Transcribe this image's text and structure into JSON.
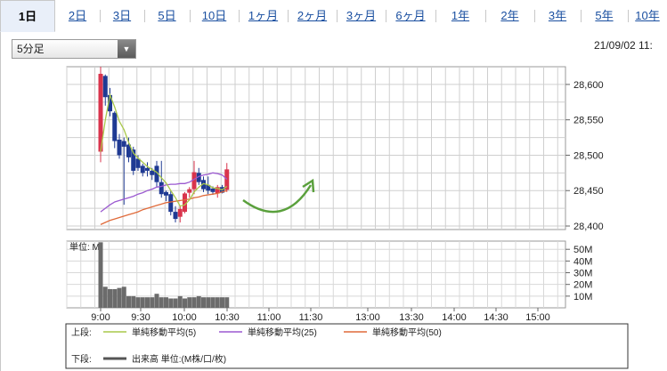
{
  "tabs": [
    {
      "label": "1日",
      "active": true
    },
    {
      "label": "2日",
      "active": false
    },
    {
      "label": "3日",
      "active": false
    },
    {
      "label": "5日",
      "active": false
    },
    {
      "label": "10日",
      "active": false
    },
    {
      "label": "1ヶ月",
      "active": false
    },
    {
      "label": "2ヶ月",
      "active": false
    },
    {
      "label": "3ヶ月",
      "active": false
    },
    {
      "label": "6ヶ月",
      "active": false
    },
    {
      "label": "1年",
      "active": false
    },
    {
      "label": "2年",
      "active": false
    },
    {
      "label": "3年",
      "active": false
    },
    {
      "label": "5年",
      "active": false
    },
    {
      "label": "10年",
      "active": false
    }
  ],
  "interval_select": {
    "value": "5分足"
  },
  "timestamp": "21/09/02 11:",
  "colors": {
    "up": "#d9344c",
    "down": "#1f3a93",
    "ma5": "#a9c84a",
    "ma25": "#9b59d0",
    "ma50": "#e06a3a",
    "volume": "#6b6b6b",
    "arrow": "#5aa03c",
    "grid": "#b0b0b0"
  },
  "chart_data": [
    {
      "type": "candlestick",
      "x_tick_labels": [
        "9:00",
        "9:30",
        "10:00",
        "10:30",
        "11:00",
        "11:30",
        "13:00",
        "13:30",
        "14:00",
        "14:30",
        "15:00"
      ],
      "y_ticks": [
        28400,
        28450,
        28500,
        28550,
        28600
      ],
      "y_tick_labels": [
        "28,400",
        "28,450",
        "28,500",
        "28,550",
        "28,600"
      ],
      "ylim": [
        28395,
        28625
      ],
      "grid": true,
      "candles": [
        {
          "t": "9:00",
          "o": 28505,
          "h": 28625,
          "l": 28490,
          "c": 28615
        },
        {
          "t": "9:05",
          "o": 28612,
          "h": 28614,
          "l": 28570,
          "c": 28582
        },
        {
          "t": "9:10",
          "o": 28585,
          "h": 28595,
          "l": 28555,
          "c": 28562
        },
        {
          "t": "9:15",
          "o": 28560,
          "h": 28562,
          "l": 28510,
          "c": 28520
        },
        {
          "t": "9:20",
          "o": 28522,
          "h": 28530,
          "l": 28495,
          "c": 28500
        },
        {
          "t": "9:25",
          "o": 28520,
          "h": 28525,
          "l": 28430,
          "c": 28512
        },
        {
          "t": "9:30",
          "o": 28515,
          "h": 28525,
          "l": 28490,
          "c": 28497
        },
        {
          "t": "9:35",
          "o": 28508,
          "h": 28512,
          "l": 28472,
          "c": 28478
        },
        {
          "t": "9:40",
          "o": 28495,
          "h": 28500,
          "l": 28478,
          "c": 28482
        },
        {
          "t": "9:45",
          "o": 28485,
          "h": 28488,
          "l": 28470,
          "c": 28475
        },
        {
          "t": "9:50",
          "o": 28482,
          "h": 28490,
          "l": 28470,
          "c": 28478
        },
        {
          "t": "9:55",
          "o": 28478,
          "h": 28482,
          "l": 28465,
          "c": 28472
        },
        {
          "t": "10:00",
          "o": 28485,
          "h": 28492,
          "l": 28455,
          "c": 28462
        },
        {
          "t": "10:05",
          "o": 28462,
          "h": 28492,
          "l": 28440,
          "c": 28445
        },
        {
          "t": "10:10",
          "o": 28448,
          "h": 28450,
          "l": 28435,
          "c": 28443
        },
        {
          "t": "10:15",
          "o": 28445,
          "h": 28450,
          "l": 28415,
          "c": 28420
        },
        {
          "t": "10:20",
          "o": 28420,
          "h": 28428,
          "l": 28405,
          "c": 28410
        },
        {
          "t": "10:25",
          "o": 28413,
          "h": 28428,
          "l": 28405,
          "c": 28424
        },
        {
          "t": "10:30",
          "o": 28420,
          "h": 28448,
          "l": 28418,
          "c": 28446
        },
        {
          "t": "10:35",
          "o": 28447,
          "h": 28455,
          "l": 28440,
          "c": 28452
        },
        {
          "t": "10:40",
          "o": 28452,
          "h": 28492,
          "l": 28445,
          "c": 28476
        },
        {
          "t": "10:45",
          "o": 28475,
          "h": 28482,
          "l": 28458,
          "c": 28462
        },
        {
          "t": "10:50",
          "o": 28465,
          "h": 28470,
          "l": 28448,
          "c": 28452
        },
        {
          "t": "10:55",
          "o": 28458,
          "h": 28470,
          "l": 28445,
          "c": 28450
        },
        {
          "t": "11:00",
          "o": 28453,
          "h": 28456,
          "l": 28444,
          "c": 28448
        },
        {
          "t": "11:05",
          "o": 28446,
          "h": 28458,
          "l": 28440,
          "c": 28455
        },
        {
          "t": "11:10",
          "o": 28455,
          "h": 28458,
          "l": 28446,
          "c": 28447
        },
        {
          "t": "11:15",
          "o": 28451,
          "h": 28489,
          "l": 28448,
          "c": 28480
        }
      ],
      "ma5": [
        28505,
        28550,
        28585,
        28568,
        28548,
        28536,
        28518,
        28503,
        28496,
        28490,
        28484,
        28480,
        28476,
        28468,
        28461,
        28450,
        28440,
        28428,
        28430,
        28437,
        28448,
        28455,
        28460,
        28458,
        28454,
        28453,
        28451,
        28456
      ],
      "ma25": [
        28420,
        28425,
        28430,
        28434,
        28436,
        28438,
        28440,
        28442,
        28445,
        28447,
        28450,
        28452,
        28455,
        28456,
        28458,
        28459,
        28459,
        28460,
        28460,
        28462,
        28466,
        28470,
        28472,
        28473,
        28475,
        28474,
        28472,
        28466
      ],
      "ma50": [
        28402,
        28405,
        28408,
        28410,
        28412,
        28414,
        28416,
        28418,
        28420,
        28423,
        28425,
        28427,
        28429,
        28431,
        28433,
        28434,
        28435,
        28436,
        28437,
        28438,
        28440,
        28441,
        28443,
        28444,
        28445,
        28446,
        28448,
        28450
      ],
      "annotation": "green curved arrow pointing up-right after last candle"
    },
    {
      "type": "bar",
      "unit_label": "単位: M",
      "y_tick_labels": [
        "50M",
        "40M",
        "30M",
        "20M",
        "10M"
      ],
      "y_ticks": [
        50,
        40,
        30,
        20,
        10
      ],
      "ylim": [
        0,
        57
      ],
      "volumes": [
        56,
        18,
        16,
        16,
        17,
        18,
        10,
        10,
        9,
        9,
        9,
        9,
        12,
        9,
        9,
        8,
        8,
        10,
        8,
        9,
        9,
        10,
        9,
        9,
        9,
        9,
        9,
        9
      ]
    }
  ],
  "legend": {
    "upper_label": "上段:",
    "lower_label": "下段:",
    "items": [
      {
        "label": "単純移動平均(5)",
        "color": "#a9c84a"
      },
      {
        "label": "単純移動平均(25)",
        "color": "#9b59d0"
      },
      {
        "label": "単純移動平均(50)",
        "color": "#e06a3a"
      }
    ],
    "volume_item": {
      "label": "出来高 単位:(M株/口/枚)",
      "color": "#555555"
    }
  }
}
